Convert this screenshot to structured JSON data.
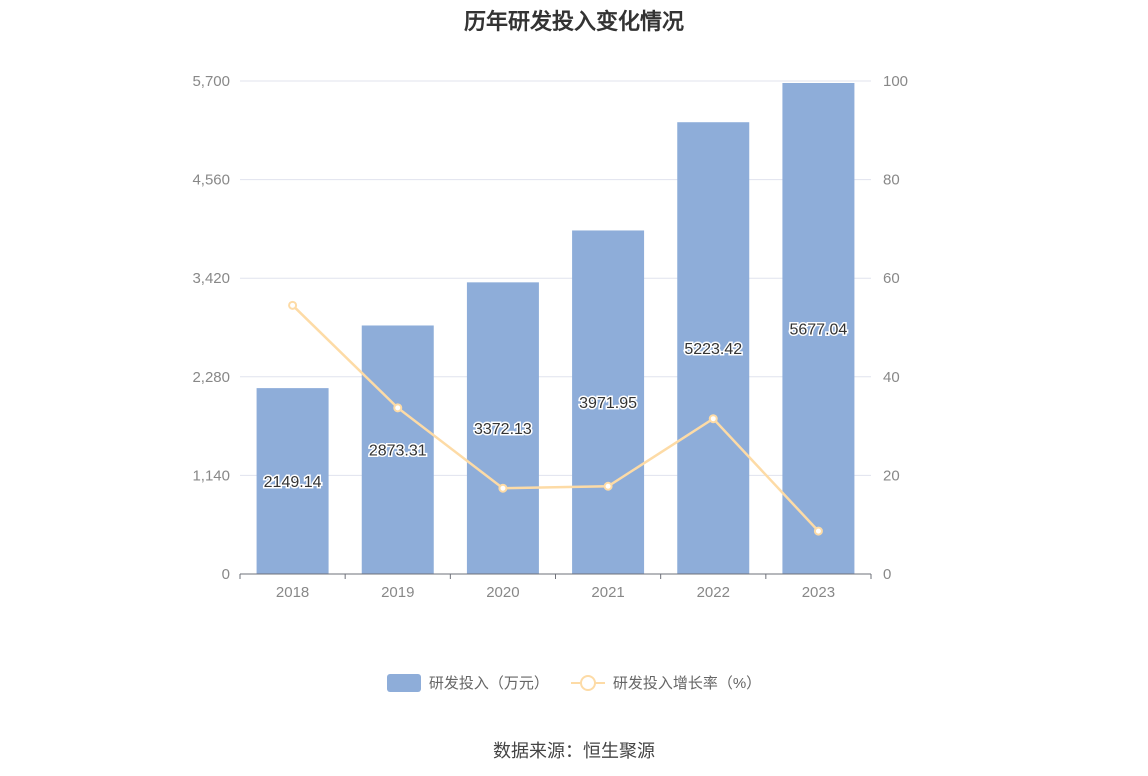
{
  "chart_data": {
    "type": "bar",
    "title": "历年研发投入变化情况",
    "categories": [
      "2018",
      "2019",
      "2020",
      "2021",
      "2022",
      "2023"
    ],
    "series": [
      {
        "name": "研发投入（万元）",
        "type": "bar",
        "axis": "left",
        "values": [
          2149.14,
          2873.31,
          3372.13,
          3971.95,
          5223.42,
          5677.04
        ],
        "color": "#8eadd9"
      },
      {
        "name": "研发投入增长率（%）",
        "type": "line",
        "axis": "right",
        "values": [
          54.5,
          33.7,
          17.4,
          17.8,
          31.5,
          8.7
        ],
        "color": "#fddba6"
      }
    ],
    "y_left": {
      "ticks": [
        "0",
        "1,140",
        "2,280",
        "3,420",
        "4,560",
        "5,700"
      ],
      "ylim": [
        0,
        5700
      ]
    },
    "y_right": {
      "ticks": [
        "0",
        "20",
        "40",
        "60",
        "80",
        "100"
      ],
      "ylim": [
        0,
        100
      ]
    },
    "grid": true,
    "legend_position": "bottom"
  },
  "source_text": "数据来源：恒生聚源"
}
